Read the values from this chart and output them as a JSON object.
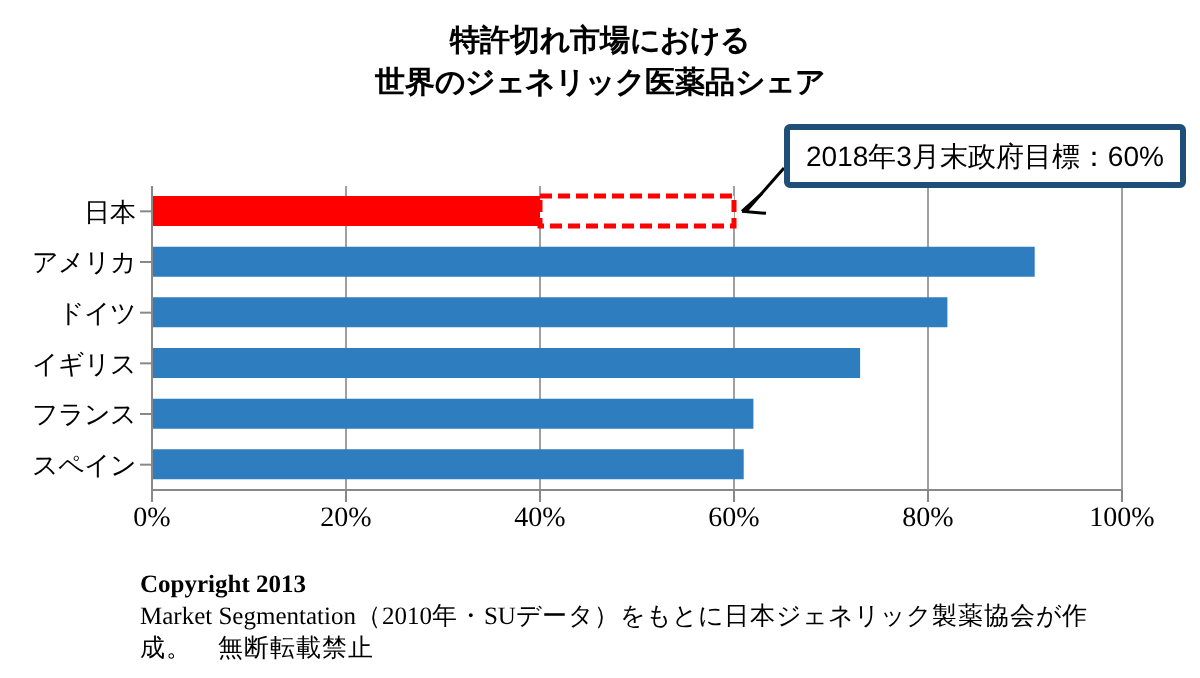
{
  "chart_data": {
    "type": "bar",
    "orientation": "horizontal",
    "stacked": true,
    "title": "特許切れ市場における",
    "subtitle": "世界のジェネリック医薬品シェア",
    "categories": [
      "日本",
      "アメリカ",
      "ドイツ",
      "イギリス",
      "フランス",
      "スペイン"
    ],
    "series": [
      {
        "colors": [
          "#ff0000",
          "#2e7dbf",
          "#2e7dbf",
          "#2e7dbf",
          "#2e7dbf",
          "#2e7dbf"
        ],
        "values": [
          40,
          91,
          82,
          73,
          62,
          61
        ]
      },
      {
        "color": "#ff0000",
        "line_style": "dashed",
        "values": [
          20,
          null,
          null,
          null,
          null,
          null
        ]
      }
    ],
    "xlim": [
      0,
      100
    ],
    "xticks": [
      {
        "value": 0,
        "label": "0%"
      },
      {
        "value": 20,
        "label": "20%"
      },
      {
        "value": 40,
        "label": "40%"
      },
      {
        "value": 60,
        "label": "60%"
      },
      {
        "value": 80,
        "label": "80%"
      },
      {
        "value": 100,
        "label": "100%"
      }
    ],
    "grid": "x",
    "legend": false,
    "annotations": [
      {
        "text": "2018年3月末政府目標：60%",
        "x": 60,
        "y": "日本"
      },
      "Copyright 2013",
      "Market Segmentation（2010年・SUデータ）をもとに日本ジェネリック製薬協会が作成。　無断転載禁止"
    ]
  }
}
